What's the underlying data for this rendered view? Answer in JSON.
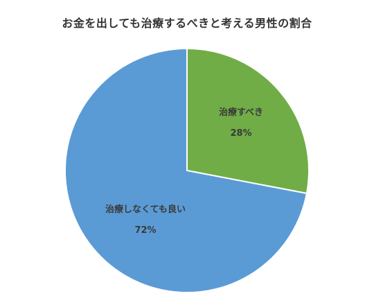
{
  "chart_data": {
    "type": "pie",
    "title": "お金を出しても治療するべきと考える男性の割合",
    "slices": [
      {
        "label": "治療すべき",
        "value": 28,
        "value_label": "28%",
        "color": "#70ad47"
      },
      {
        "label": "治療しなくても良い",
        "value": 72,
        "value_label": "72%",
        "color": "#5b9bd5"
      }
    ],
    "start": "12 o'clock",
    "direction": "clockwise",
    "legend": "none"
  }
}
